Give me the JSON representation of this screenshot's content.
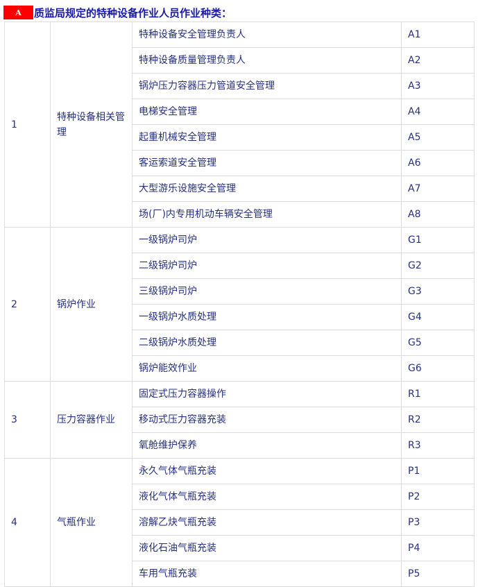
{
  "header": {
    "badge": "A",
    "title": "质监局规定的特种设备作业人员作业种类："
  },
  "groups": [
    {
      "no": "1",
      "category": "特种设备相关管理",
      "items": [
        {
          "name": "特种设备安全管理负责人",
          "code": "A1"
        },
        {
          "name": "特种设备质量管理负责人",
          "code": "A2"
        },
        {
          "name": "锅炉压力容器压力管道安全管理",
          "code": "A3"
        },
        {
          "name": "电梯安全管理",
          "code": "A4"
        },
        {
          "name": "起重机械安全管理",
          "code": "A5"
        },
        {
          "name": "客运索道安全管理",
          "code": "A6"
        },
        {
          "name": "大型游乐设施安全管理",
          "code": "A7"
        },
        {
          "name": "场(厂)内专用机动车辆安全管理",
          "code": "A8"
        }
      ]
    },
    {
      "no": "2",
      "category": "锅炉作业",
      "items": [
        {
          "name": "一级锅炉司炉",
          "code": "G1"
        },
        {
          "name": "二级锅炉司炉",
          "code": "G2"
        },
        {
          "name": "三级锅炉司炉",
          "code": "G3"
        },
        {
          "name": "一级锅炉水质处理",
          "code": "G4"
        },
        {
          "name": "二级锅炉水质处理",
          "code": "G5"
        },
        {
          "name": "锅炉能效作业",
          "code": "G6"
        }
      ]
    },
    {
      "no": "3",
      "category": "压力容器作业",
      "items": [
        {
          "name": "固定式压力容器操作",
          "code": "R1"
        },
        {
          "name": "移动式压力容器充装",
          "code": "R2"
        },
        {
          "name": "氧舱维护保养",
          "code": "R3"
        }
      ]
    },
    {
      "no": "4",
      "category": "气瓶作业",
      "items": [
        {
          "name": "永久气体气瓶充装",
          "code": "P1"
        },
        {
          "name": "液化气体气瓶充装",
          "code": "P2"
        },
        {
          "name": "溶解乙炔气瓶充装",
          "code": "P3"
        },
        {
          "name": "液化石油气瓶充装",
          "code": "P4"
        },
        {
          "name": "车用气瓶充装",
          "code": "P5"
        }
      ]
    }
  ]
}
